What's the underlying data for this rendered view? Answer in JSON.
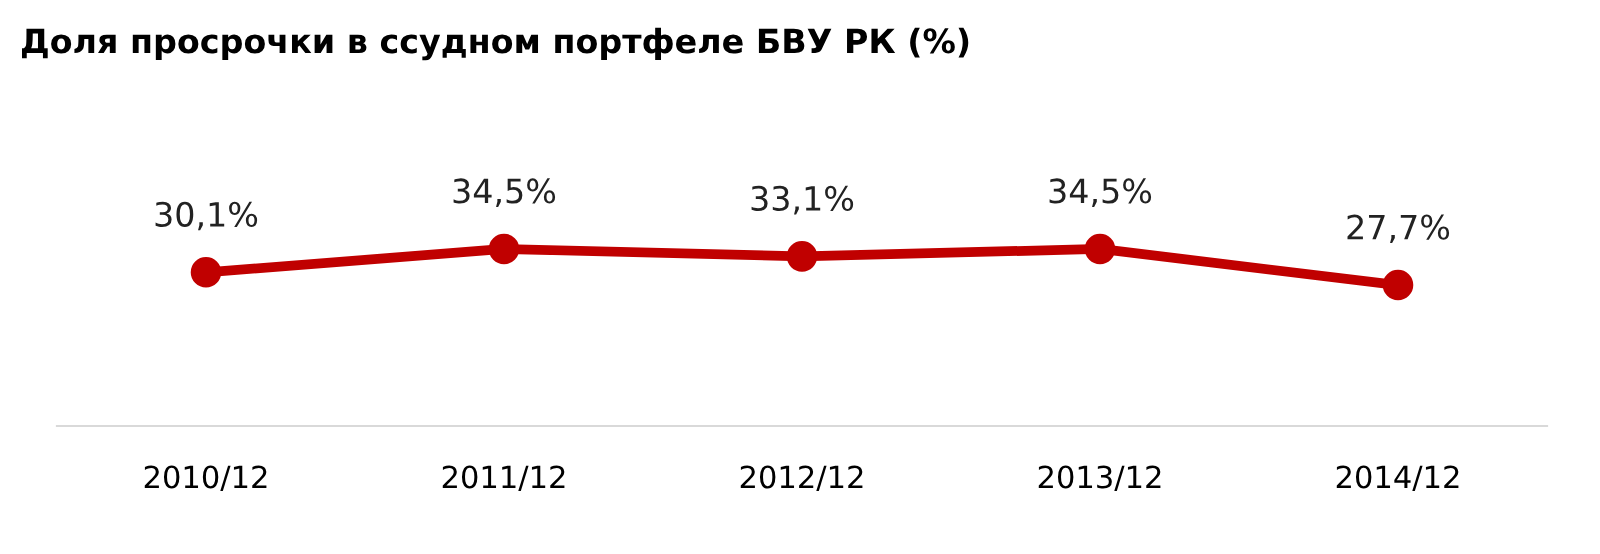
{
  "chart_data": {
    "type": "line",
    "title": "Доля просрочки в ссудном портфеле БВУ РК (%)",
    "categories": [
      "2010/12",
      "2011/12",
      "2012/12",
      "2013/12",
      "2014/12"
    ],
    "series": [
      {
        "color": "#c00000",
        "values": [
          30.1,
          34.5,
          33.1,
          34.5,
          27.7
        ],
        "value_labels": [
          "30,1%",
          "34,5%",
          "33,1%",
          "34,5%",
          "27,7%"
        ]
      }
    ],
    "tick_labels": "x",
    "grid": false,
    "legend": false,
    "marker": "circle",
    "line_style": "solid"
  }
}
